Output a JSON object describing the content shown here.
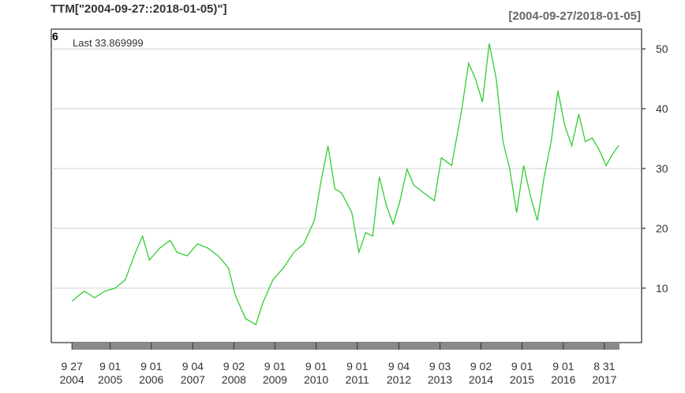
{
  "chart_data": {
    "type": "line",
    "title": "TTM[\"2004-09-27::2018-01-05)\"]",
    "range_label": "[2004-09-27/2018-01-05]",
    "panel_label": "6",
    "legend_text": "Last 33.869999",
    "color": "#33cc33",
    "grid": true,
    "x": [
      "2004-09-27",
      "2004-11-15",
      "2005-01-14",
      "2005-04-15",
      "2005-07-15",
      "2005-10-14",
      "2006-01-13",
      "2006-04-14",
      "2006-06-15",
      "2006-08-15",
      "2006-11-15",
      "2007-02-15",
      "2007-04-16",
      "2007-07-16",
      "2007-10-15",
      "2008-01-15",
      "2008-04-15",
      "2008-07-15",
      "2008-09-15",
      "2008-12-15",
      "2009-03-16",
      "2009-05-15",
      "2009-08-14",
      "2009-11-16",
      "2010-02-16",
      "2010-05-14",
      "2010-08-16",
      "2010-10-15",
      "2010-12-15",
      "2011-02-15",
      "2011-04-15",
      "2011-07-15",
      "2011-09-15",
      "2011-11-15",
      "2012-01-16",
      "2012-03-15",
      "2012-05-15",
      "2012-07-16",
      "2012-09-14",
      "2012-11-15",
      "2013-01-15",
      "2013-04-15",
      "2013-07-15",
      "2013-09-16",
      "2013-12-16",
      "2014-03-14",
      "2014-05-15",
      "2014-07-15",
      "2014-09-15",
      "2014-11-14",
      "2015-01-15",
      "2015-03-16",
      "2015-05-15",
      "2015-07-15",
      "2015-09-15",
      "2015-11-16",
      "2016-01-15",
      "2016-03-15",
      "2016-05-16",
      "2016-07-15",
      "2016-09-15",
      "2016-11-15",
      "2017-01-16",
      "2017-03-15",
      "2017-05-15",
      "2017-07-14",
      "2017-09-15",
      "2017-11-15",
      "2018-01-05"
    ],
    "values": [
      7.8,
      8.6,
      9.5,
      8.4,
      9.5,
      10,
      11.4,
      16,
      18.7,
      14.7,
      16.7,
      18,
      16,
      15.4,
      17.4,
      16.7,
      15.4,
      13.4,
      8.8,
      4.9,
      3.9,
      7.5,
      11.4,
      13.4,
      16,
      17.4,
      21.3,
      27.9,
      33.8,
      26.6,
      25.9,
      22.6,
      16,
      19.3,
      18.7,
      28.6,
      23.9,
      20.7,
      24.6,
      29.9,
      27.2,
      25.9,
      24.6,
      31.8,
      30.5,
      39.7,
      47.6,
      45,
      41.1,
      50.9,
      45,
      34.5,
      29.9,
      22.6,
      30.5,
      25.3,
      21.3,
      28.6,
      34.5,
      43,
      37.1,
      33.8,
      39.1,
      34.5,
      35.1,
      33.2,
      30.5,
      32.5,
      33.87
    ],
    "xlim": [
      "2004-03-28",
      "2018-07-27"
    ],
    "xticks": [
      {
        "value": "2004-09-27",
        "label": "9 27\n2004"
      },
      {
        "value": "2005-09-01",
        "label": "9 01\n2005"
      },
      {
        "value": "2006-09-01",
        "label": "9 01\n2006"
      },
      {
        "value": "2007-09-04",
        "label": "9 04\n2007"
      },
      {
        "value": "2008-09-02",
        "label": "9 02\n2008"
      },
      {
        "value": "2009-09-01",
        "label": "9 01\n2009"
      },
      {
        "value": "2010-09-01",
        "label": "9 01\n2010"
      },
      {
        "value": "2011-09-01",
        "label": "9 01\n2011"
      },
      {
        "value": "2012-09-04",
        "label": "9 04\n2012"
      },
      {
        "value": "2013-09-03",
        "label": "9 03\n2013"
      },
      {
        "value": "2014-09-02",
        "label": "9 02\n2014"
      },
      {
        "value": "2015-09-01",
        "label": "9 01\n2015"
      },
      {
        "value": "2016-09-01",
        "label": "9 01\n2016"
      },
      {
        "value": "2017-08-31",
        "label": "8 31\n2017"
      }
    ],
    "ylim": [
      0.9,
      53.3
    ],
    "yticks": [
      10,
      20,
      30,
      40,
      50
    ]
  }
}
